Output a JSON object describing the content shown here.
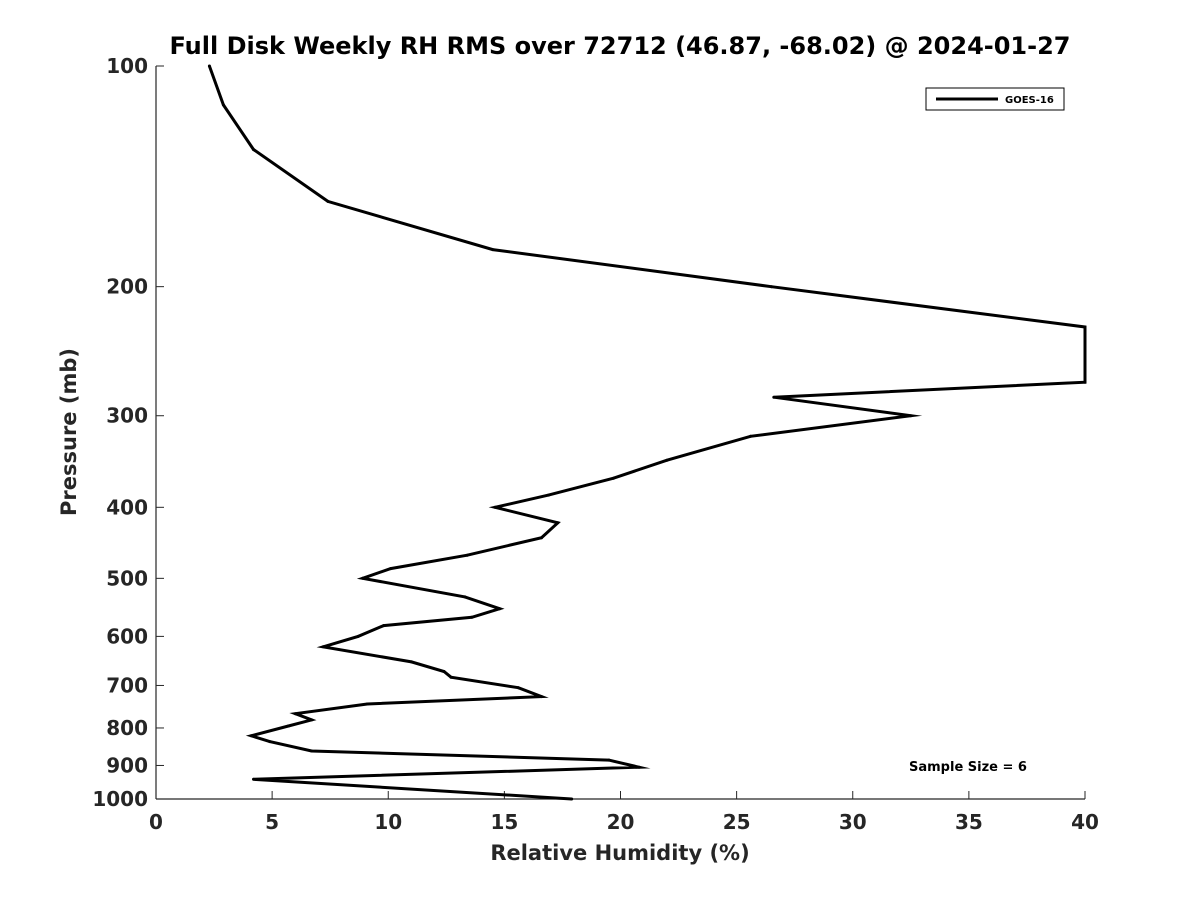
{
  "chart_data": {
    "type": "line",
    "title": "Full Disk Weekly RH RMS over 72712 (46.87, -68.02) @ 2024-01-27",
    "xlabel": "Relative Humidity (%)",
    "ylabel": "Pressure (mb)",
    "xlim": [
      0,
      40
    ],
    "ylim": [
      100,
      1000
    ],
    "y_scale": "log",
    "y_reversed": true,
    "grid": false,
    "legend_position": "top-right",
    "x_ticks": [
      "0",
      "5",
      "10",
      "15",
      "20",
      "25",
      "30",
      "35",
      "40"
    ],
    "y_ticks": [
      "100",
      "200",
      "300",
      "400",
      "500",
      "600",
      "700",
      "800",
      "900",
      "1000"
    ],
    "series": [
      {
        "name": "GOES-16",
        "color": "#000000",
        "points": [
          [
            2.3,
            100
          ],
          [
            2.9,
            113
          ],
          [
            4.2,
            130
          ],
          [
            7.4,
            153
          ],
          [
            14.5,
            178
          ],
          [
            26.5,
            200
          ],
          [
            40.0,
            227
          ],
          [
            40.0,
            270
          ],
          [
            26.6,
            283
          ],
          [
            32.5,
            300
          ],
          [
            25.6,
            320
          ],
          [
            22.0,
            345
          ],
          [
            19.7,
            365
          ],
          [
            16.9,
            385
          ],
          [
            14.6,
            400
          ],
          [
            17.3,
            420
          ],
          [
            16.6,
            440
          ],
          [
            13.4,
            465
          ],
          [
            10.1,
            485
          ],
          [
            8.9,
            500
          ],
          [
            13.3,
            530
          ],
          [
            14.8,
            550
          ],
          [
            13.6,
            565
          ],
          [
            9.8,
            580
          ],
          [
            8.7,
            600
          ],
          [
            7.2,
            620
          ],
          [
            11.0,
            650
          ],
          [
            12.4,
            670
          ],
          [
            12.7,
            682
          ],
          [
            15.6,
            705
          ],
          [
            16.6,
            725
          ],
          [
            9.1,
            742
          ],
          [
            6.0,
            765
          ],
          [
            6.7,
            780
          ],
          [
            5.7,
            795
          ],
          [
            4.1,
            820
          ],
          [
            4.9,
            835
          ],
          [
            6.7,
            860
          ],
          [
            19.5,
            885
          ],
          [
            20.8,
            905
          ],
          [
            4.2,
            940
          ],
          [
            17.9,
            1000
          ]
        ]
      }
    ],
    "legend": [
      "GOES-16"
    ],
    "annotation": "Sample Size = 6"
  }
}
